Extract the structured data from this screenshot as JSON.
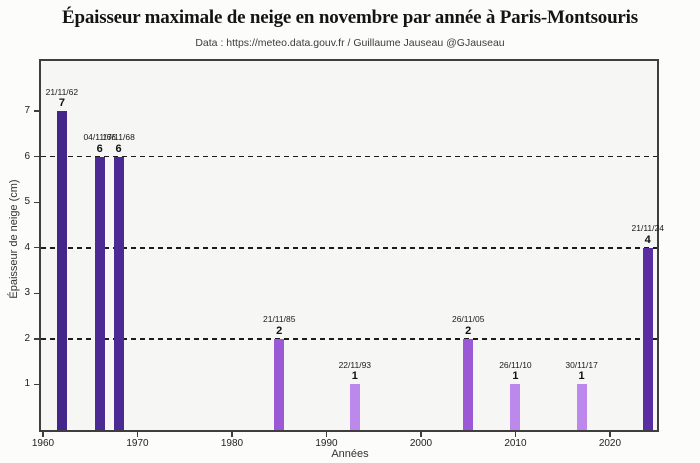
{
  "chart_data": {
    "type": "bar",
    "title": "Épaisseur maximale de neige en novembre par année à Paris-Montsouris",
    "subtitle": "Data : https://meteo.data.gouv.fr / Guillaume Jauseau @GJauseau",
    "xlabel": "Années",
    "ylabel": "Épaisseur de neige (cm)",
    "xlim": [
      1959.8,
      2025.3
    ],
    "ylim": [
      0,
      8.1
    ],
    "x_ticks": [
      1960,
      1970,
      1980,
      1990,
      2000,
      2010,
      2020
    ],
    "y_ticks": [
      1,
      2,
      3,
      4,
      5,
      6,
      7
    ],
    "dashed_gridlines_y": [
      2,
      4,
      6
    ],
    "grid": "dashed horizontal at even values",
    "legend_position": "none",
    "colors": {
      "value_7": "#44258a",
      "value_6": "#4c2a94",
      "value_4": "#5b2da3",
      "value_2": "#9b59d6",
      "value_1": "#bd88ec",
      "plot_background": "#f6f6f4",
      "frame": "#3e3e3e"
    },
    "bars": [
      {
        "year": 1962,
        "date": "21/11/62",
        "value": 7,
        "color": "#44258a"
      },
      {
        "year": 1966,
        "date": "04/11/66",
        "value": 6,
        "color": "#4c2a94"
      },
      {
        "year": 1968,
        "date": "17/11/68",
        "value": 6,
        "color": "#4c2a94"
      },
      {
        "year": 1985,
        "date": "21/11/85",
        "value": 2,
        "color": "#9b59d6"
      },
      {
        "year": 1993,
        "date": "22/11/93",
        "value": 1,
        "color": "#bd88ec"
      },
      {
        "year": 2005,
        "date": "26/11/05",
        "value": 2,
        "color": "#9b59d6"
      },
      {
        "year": 2010,
        "date": "26/11/10",
        "value": 1,
        "color": "#bd88ec"
      },
      {
        "year": 2017,
        "date": "30/11/17",
        "value": 1,
        "color": "#bd88ec"
      },
      {
        "year": 2024,
        "date": "21/11/24",
        "value": 4,
        "color": "#5b2da3"
      }
    ]
  }
}
